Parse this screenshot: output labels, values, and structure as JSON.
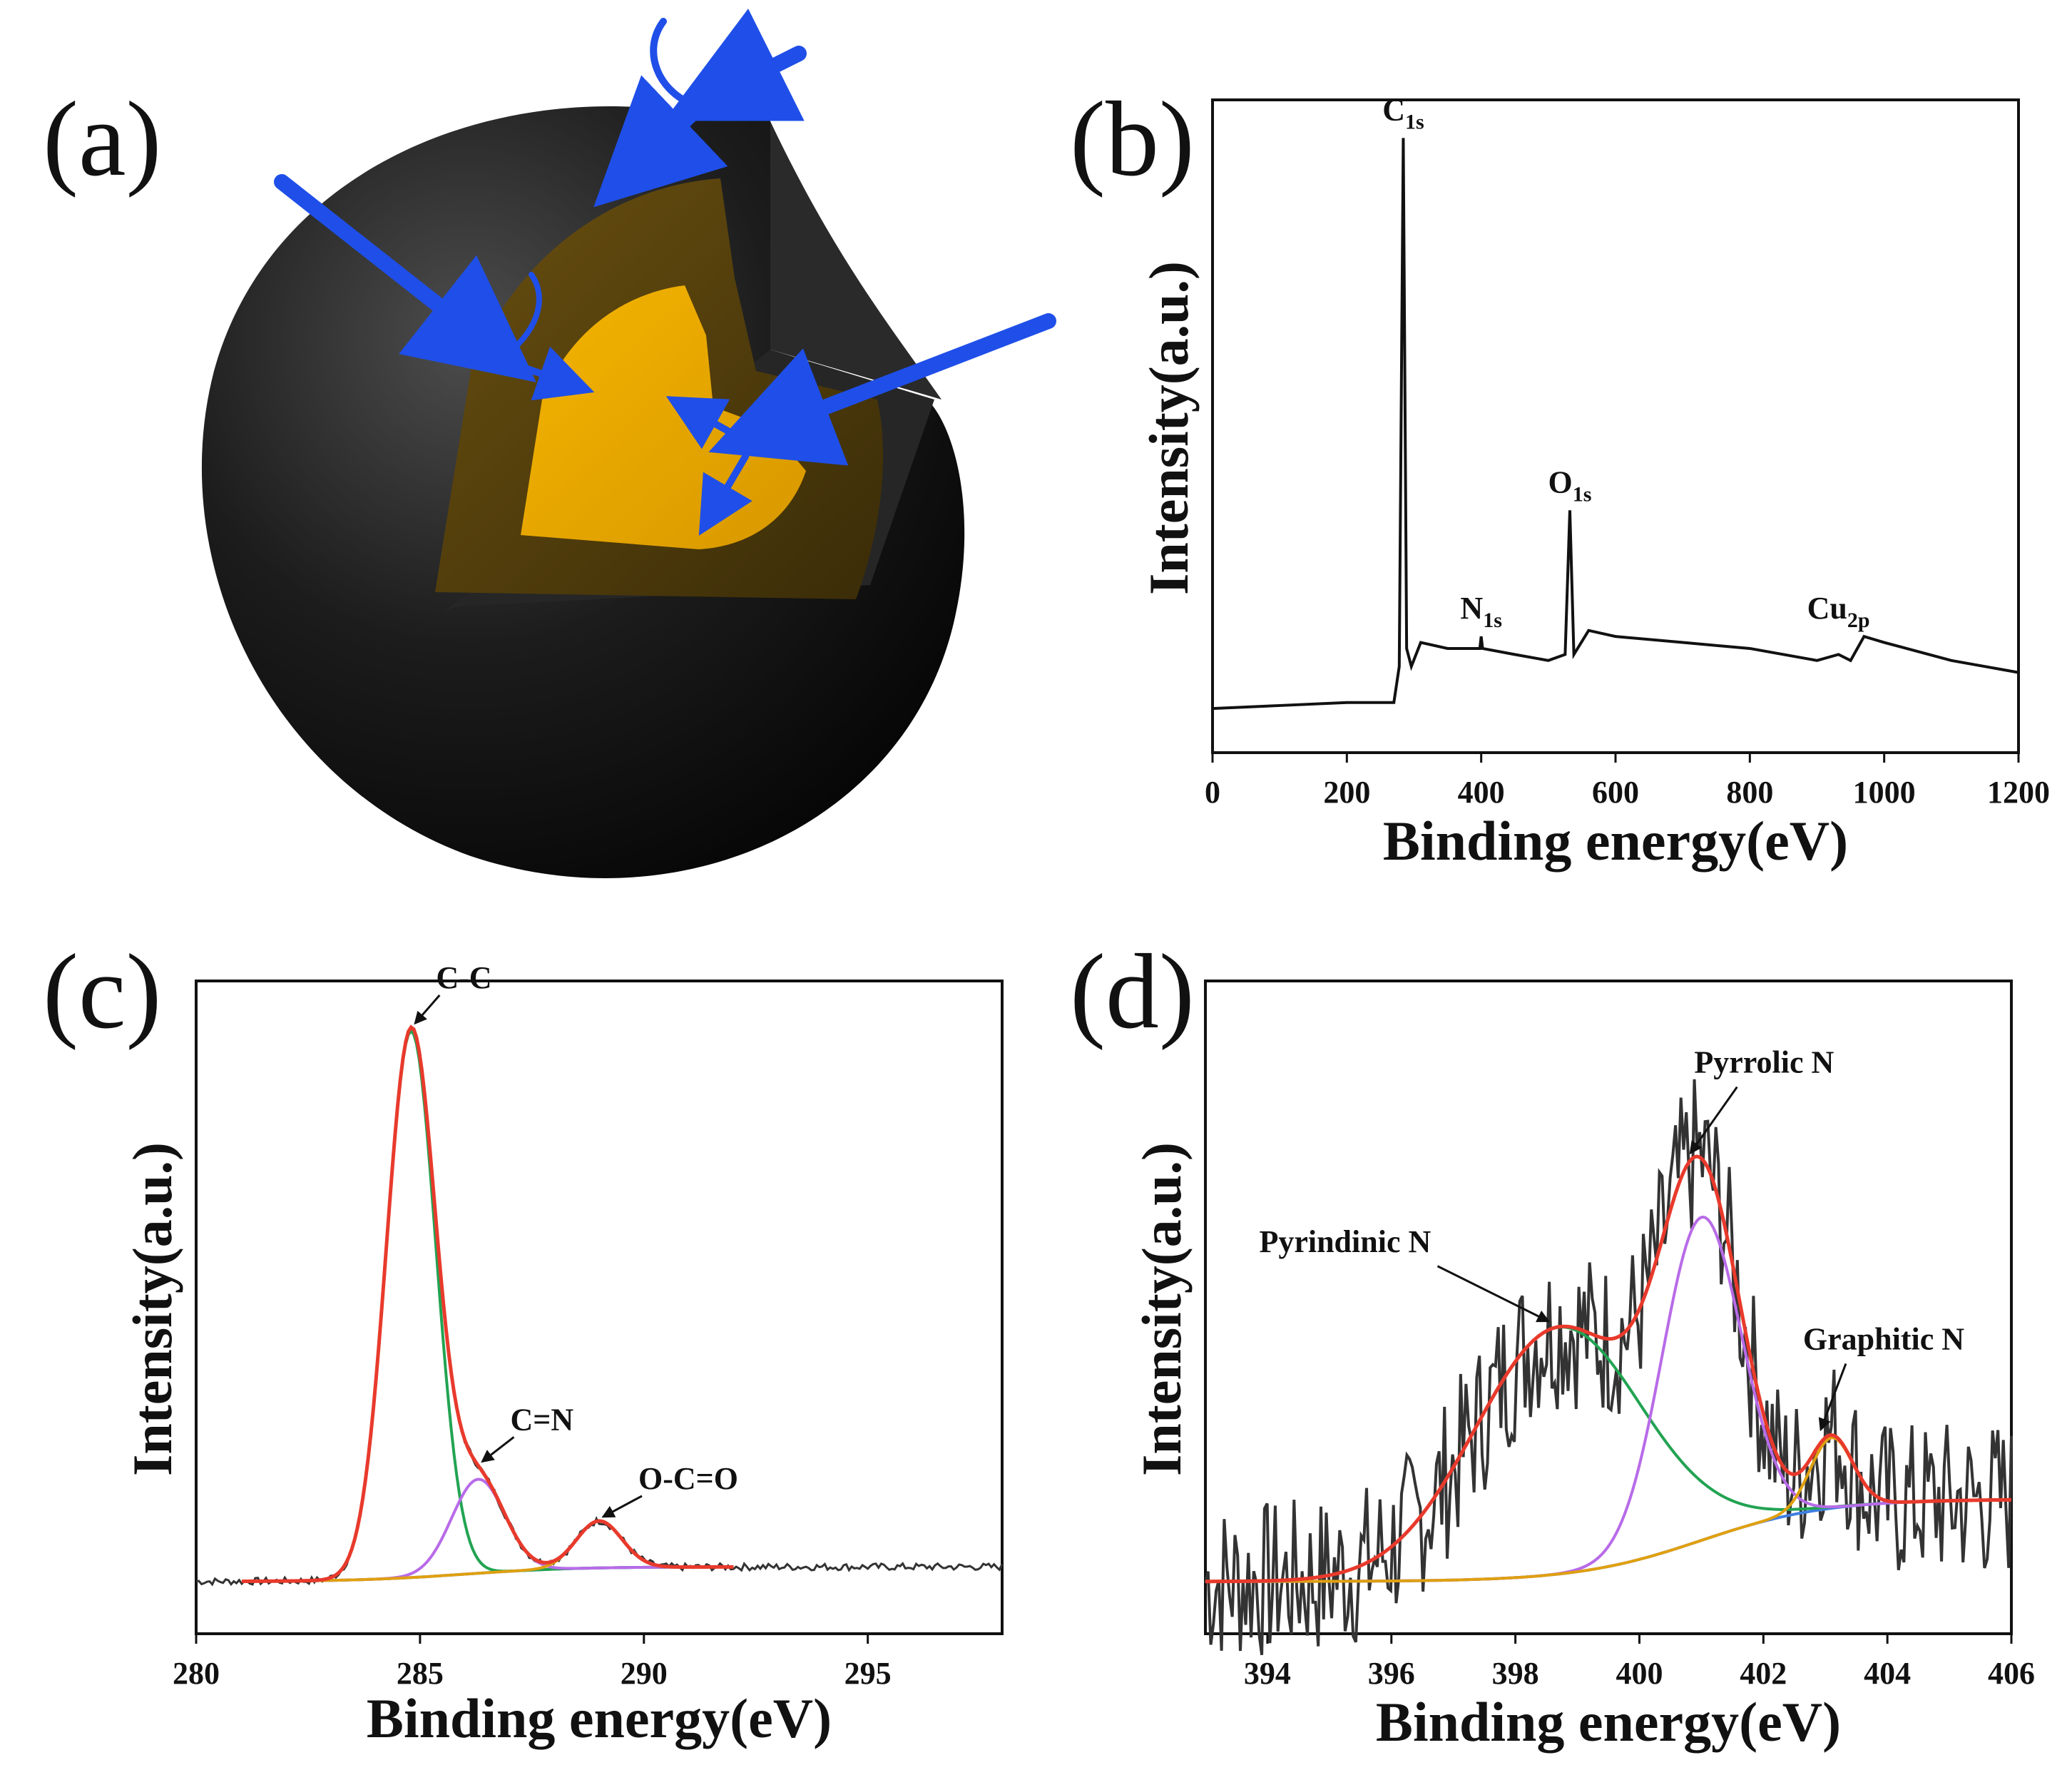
{
  "panel_labels": [
    "(a)",
    "(b)",
    "(c)",
    "(d)"
  ],
  "colors": {
    "shell_outer": "#141414",
    "shell_mid": "#4a3a10",
    "core": "#e8a800",
    "arrow": "#1f4fe8",
    "raw": "#333333",
    "envelope": "#e83a2c",
    "cc_peak": "#22a352",
    "cn_peak": "#b86be8",
    "occo_peak": "#e0a010",
    "baseline": "#3f7fe0"
  },
  "chart_data": [
    {
      "panel": "(b)",
      "type": "line",
      "xlabel": "Binding energy(eV)",
      "ylabel": "Intensity(a.u.)",
      "xlim": [
        0,
        1200
      ],
      "xticks": [
        0,
        200,
        400,
        600,
        800,
        1000,
        1200
      ],
      "peaks": [
        {
          "label": "C",
          "sub": "1s",
          "x": 284
        },
        {
          "label": "N",
          "sub": "1s",
          "x": 400
        },
        {
          "label": "O",
          "sub": "1s",
          "x": 532
        },
        {
          "label": "Cu",
          "sub": "2p",
          "x": 932
        }
      ],
      "series": [
        {
          "color": "#111111",
          "x": [
            0,
            100,
            200,
            270,
            278,
            284,
            289,
            296,
            310,
            350,
            398,
            400,
            402,
            450,
            500,
            525,
            532,
            538,
            560,
            600,
            700,
            800,
            900,
            932,
            950,
            970,
            1000,
            1100,
            1200
          ],
          "y": [
            0.03,
            0.035,
            0.04,
            0.04,
            0.1,
            0.98,
            0.13,
            0.1,
            0.14,
            0.13,
            0.13,
            0.15,
            0.13,
            0.12,
            0.11,
            0.12,
            0.36,
            0.12,
            0.16,
            0.15,
            0.14,
            0.13,
            0.11,
            0.12,
            0.11,
            0.15,
            0.14,
            0.11,
            0.09
          ]
        }
      ]
    },
    {
      "panel": "(c)",
      "type": "line",
      "xlabel": "Binding energy(eV)",
      "ylabel": "Intensity(a.u.)",
      "xlim": [
        280,
        298
      ],
      "xticks": [
        280,
        285,
        290,
        295
      ],
      "annotations": [
        {
          "text": "C-C",
          "x": 284.8
        },
        {
          "text": "C=N",
          "x": 286.3
        },
        {
          "text": "O-C=O",
          "x": 289.0
        }
      ],
      "components": [
        {
          "center": 284.8,
          "height": 0.93,
          "fwhm": 1.3
        },
        {
          "center": 286.3,
          "height": 0.16,
          "fwhm": 1.4
        },
        {
          "center": 289.0,
          "height": 0.08,
          "fwhm": 1.2
        }
      ]
    },
    {
      "panel": "(d)",
      "type": "line",
      "xlabel": "Binding energy(eV)",
      "ylabel": "Intensity(a.u.)",
      "xlim": [
        393,
        406
      ],
      "xticks": [
        394,
        396,
        398,
        400,
        402,
        404,
        406
      ],
      "annotations": [
        {
          "text": "Pyrindinic N",
          "x": 398.7
        },
        {
          "text": "Pyrrolic N",
          "x": 401.0
        },
        {
          "text": "Graphitic N",
          "x": 403.1
        }
      ],
      "components": [
        {
          "center": 398.7,
          "height": 0.42,
          "fwhm": 3.2
        },
        {
          "center": 401.0,
          "height": 0.55,
          "fwhm": 1.5
        },
        {
          "center": 403.1,
          "height": 0.12,
          "fwhm": 0.8
        }
      ]
    }
  ]
}
